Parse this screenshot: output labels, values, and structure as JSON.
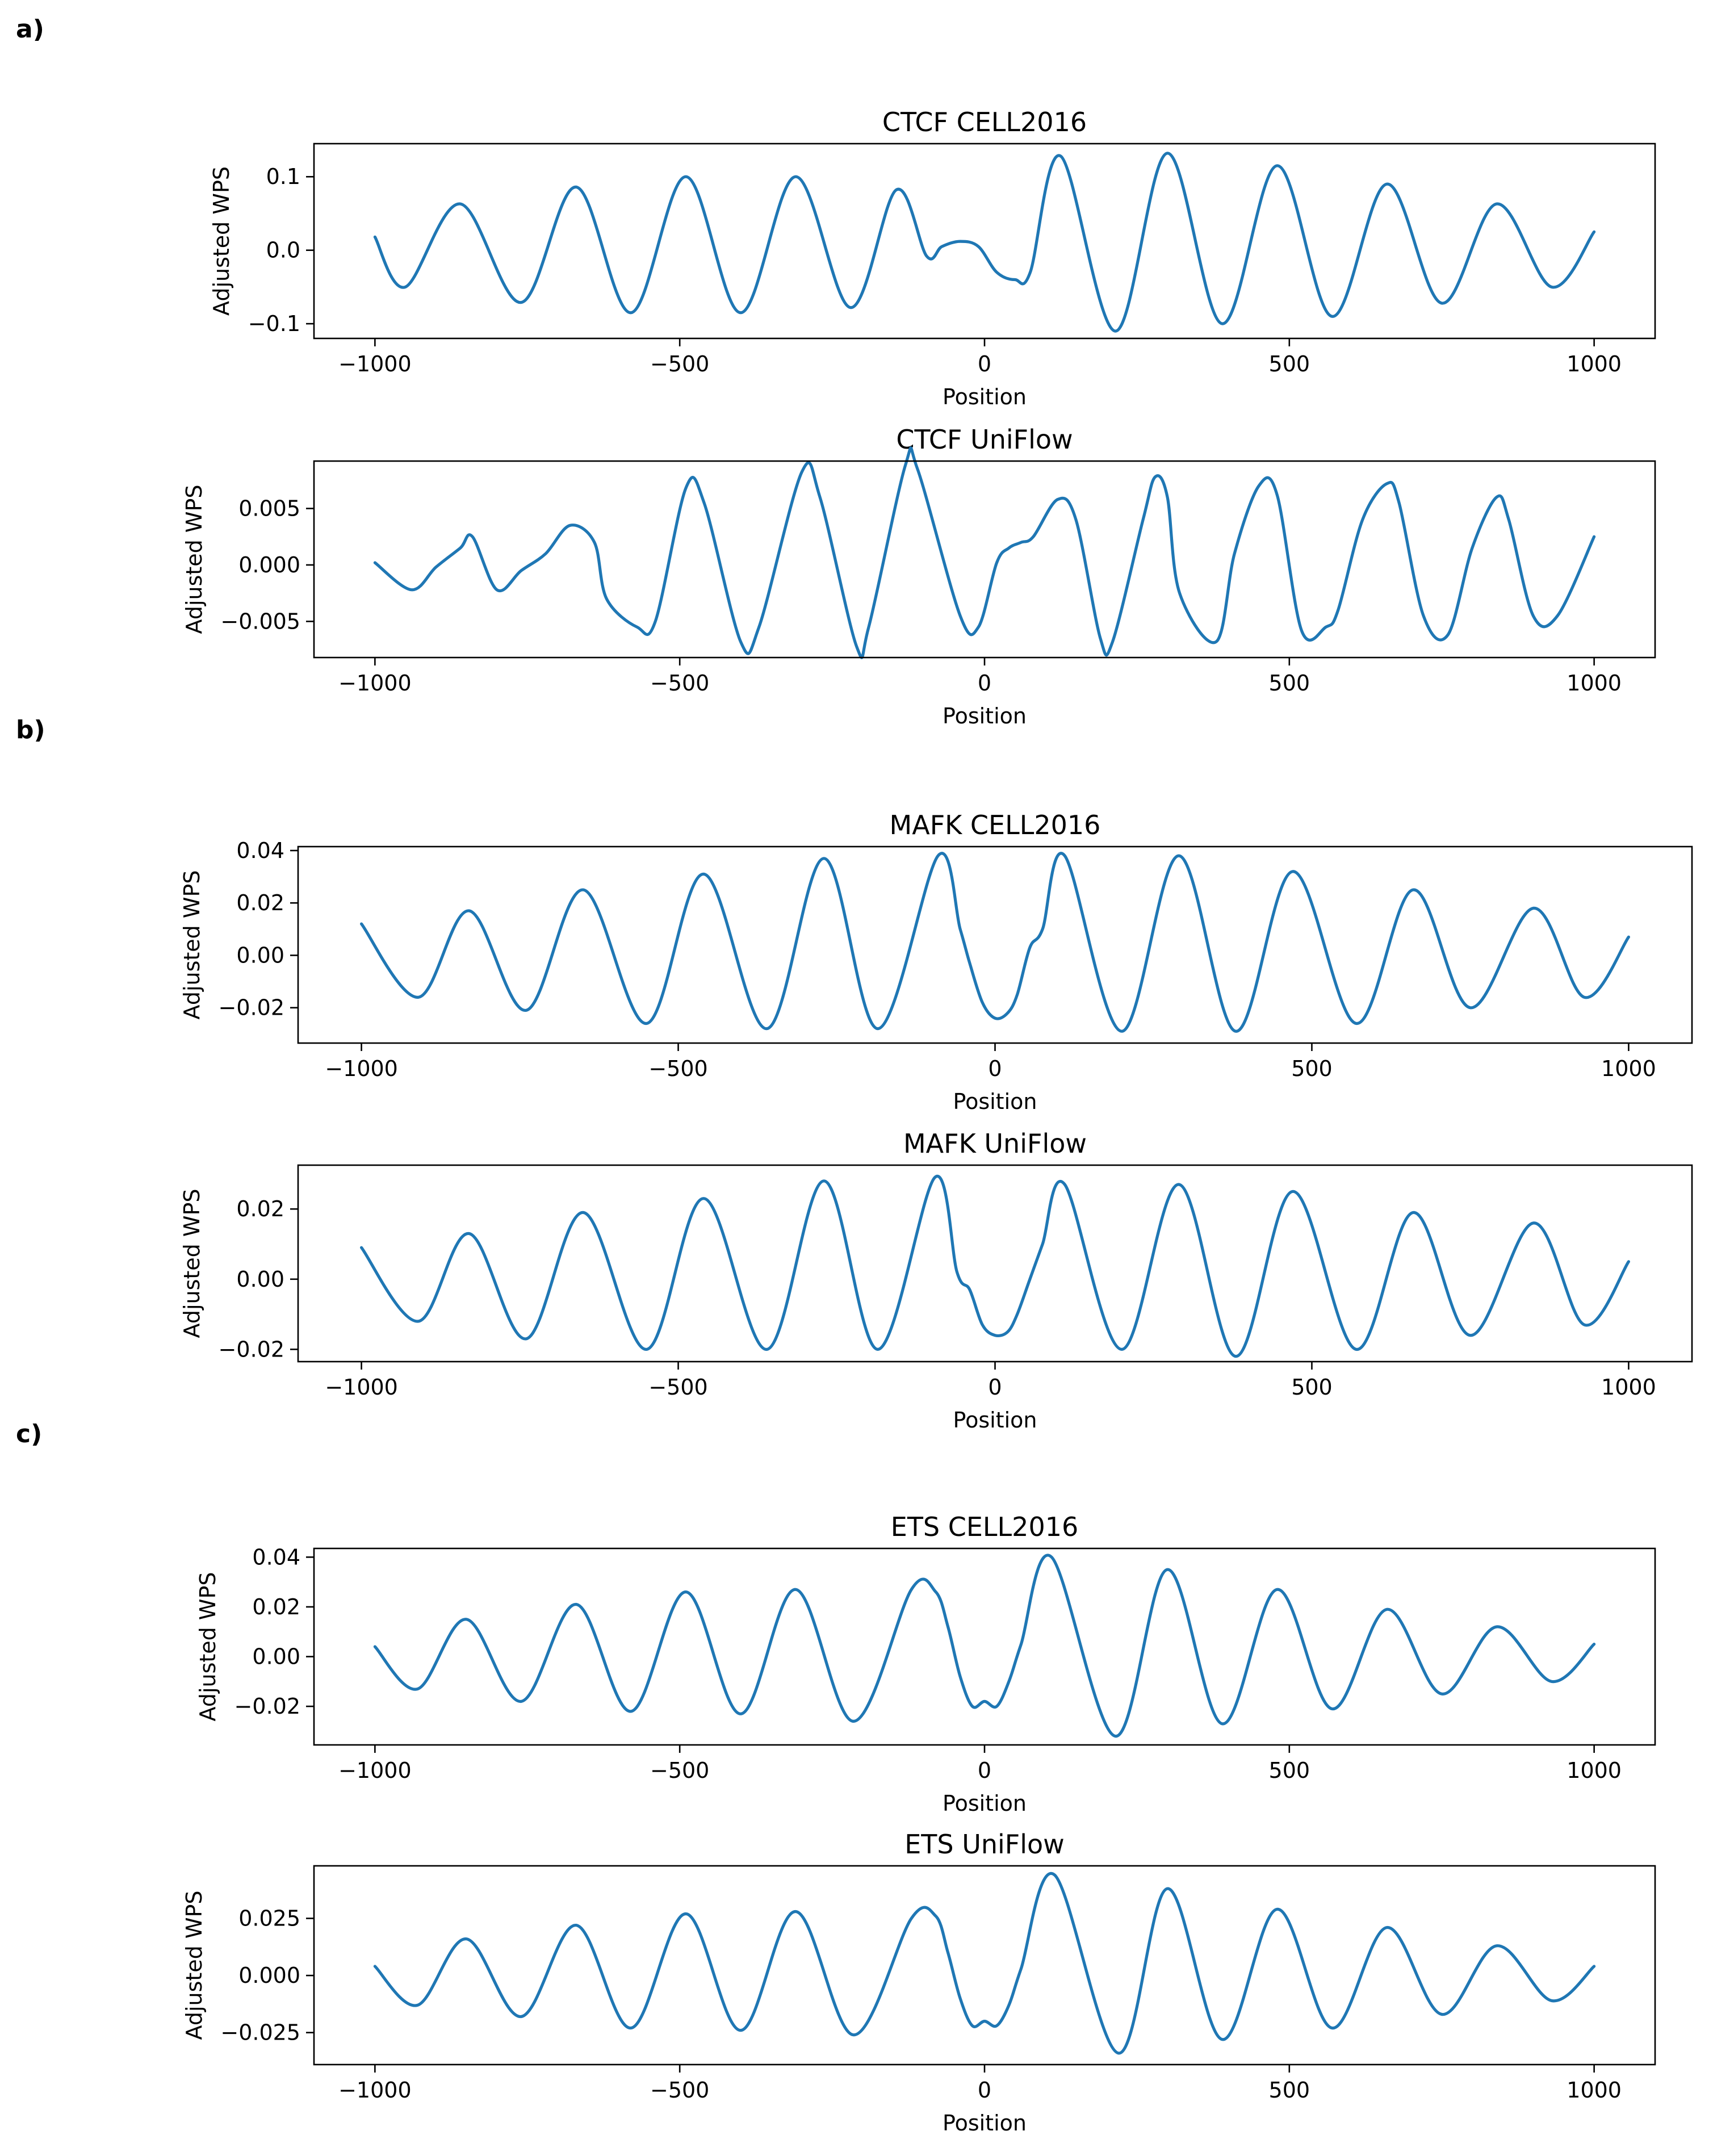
{
  "panel_labels": [
    "a)",
    "b)",
    "c)"
  ],
  "chart_data": [
    {
      "type": "line",
      "title": "CTCF CELL2016",
      "xlabel": "Position",
      "ylabel": "Adjusted WPS",
      "xlim": [
        -1100,
        1100
      ],
      "ylim": [
        -0.12,
        0.145
      ],
      "xticks": [
        -1000,
        -500,
        0,
        500,
        1000
      ],
      "xtick_labels": [
        "−1000",
        "−500",
        "0",
        "500",
        "1000"
      ],
      "yticks": [
        0.1,
        0.0,
        -0.1
      ],
      "ytick_labels": [
        "0.1",
        "0.0",
        "−0.1"
      ],
      "series": [
        {
          "color": "#1f77b4",
          "x": [
            -1000,
            -950,
            -860,
            -760,
            -670,
            -580,
            -490,
            -400,
            -310,
            -220,
            -145,
            -95,
            -70,
            -40,
            -10,
            20,
            50,
            75,
            125,
            215,
            300,
            390,
            480,
            570,
            660,
            750,
            840,
            930,
            1000
          ],
          "y": [
            0.018,
            -0.05,
            0.063,
            -0.071,
            0.086,
            -0.085,
            0.1,
            -0.085,
            0.1,
            -0.078,
            0.082,
            -0.008,
            0.005,
            0.012,
            0.005,
            -0.03,
            -0.04,
            -0.03,
            0.128,
            -0.11,
            0.132,
            -0.1,
            0.115,
            -0.09,
            0.09,
            -0.072,
            0.063,
            -0.05,
            0.025
          ]
        }
      ]
    },
    {
      "type": "line",
      "title": "CTCF UniFlow",
      "xlabel": "Position",
      "ylabel": "Adjusted WPS",
      "xlim": [
        -1100,
        1100
      ],
      "ylim": [
        -0.0082,
        0.0092
      ],
      "xticks": [
        -1000,
        -500,
        0,
        500,
        1000
      ],
      "xtick_labels": [
        "−1000",
        "−500",
        "0",
        "500",
        "1000"
      ],
      "yticks": [
        0.005,
        0.0,
        -0.005
      ],
      "ytick_labels": [
        "0.005",
        "0.000",
        "−0.005"
      ],
      "series": [
        {
          "color": "#1f77b4",
          "x": [
            -1000,
            -940,
            -900,
            -860,
            -840,
            -800,
            -760,
            -720,
            -680,
            -640,
            -620,
            -570,
            -540,
            -490,
            -460,
            -400,
            -370,
            -300,
            -270,
            -210,
            -190,
            -130,
            -110,
            -40,
            -10,
            20,
            40,
            60,
            80,
            120,
            150,
            190,
            210,
            260,
            280,
            300,
            320,
            380,
            410,
            450,
            480,
            520,
            560,
            580,
            620,
            660,
            680,
            720,
            760,
            800,
            840,
            860,
            900,
            940,
            1000
          ],
          "y": [
            0.0002,
            -0.0022,
            -0.0002,
            0.0015,
            0.0025,
            -0.0022,
            -0.0005,
            0.001,
            0.0035,
            0.002,
            -0.003,
            -0.0055,
            -0.005,
            0.0068,
            0.0055,
            -0.0068,
            -0.0055,
            0.0082,
            0.006,
            -0.0072,
            -0.0055,
            0.0088,
            0.0085,
            -0.0045,
            -0.0055,
            0.0002,
            0.0015,
            0.002,
            0.0025,
            0.0058,
            0.004,
            -0.0065,
            -0.0068,
            0.004,
            0.0078,
            0.006,
            -0.0025,
            -0.0068,
            0.001,
            0.007,
            0.0062,
            -0.0058,
            -0.0055,
            -0.004,
            0.004,
            0.0072,
            0.0055,
            -0.0045,
            -0.0062,
            0.0015,
            0.006,
            0.004,
            -0.0045,
            -0.0045,
            0.0025
          ]
        }
      ]
    },
    {
      "type": "line",
      "title": "MAFK CELL2016",
      "xlabel": "Position",
      "ylabel": "Adjusted WPS",
      "xlim": [
        -1100,
        1100
      ],
      "ylim": [
        -0.0335,
        0.0415
      ],
      "xticks": [
        -1000,
        -500,
        0,
        500,
        1000
      ],
      "xtick_labels": [
        "−1000",
        "−500",
        "0",
        "500",
        "1000"
      ],
      "yticks": [
        0.04,
        0.02,
        0.0,
        -0.02
      ],
      "ytick_labels": [
        "0.04",
        "0.02",
        "0.00",
        "−0.02"
      ],
      "series": [
        {
          "color": "#1f77b4",
          "x": [
            -1000,
            -910,
            -830,
            -740,
            -650,
            -550,
            -460,
            -360,
            -270,
            -185,
            -90,
            -55,
            -40,
            -20,
            0,
            20,
            35,
            55,
            75,
            110,
            200,
            290,
            380,
            470,
            570,
            660,
            750,
            850,
            930,
            1000
          ],
          "y": [
            0.012,
            -0.016,
            0.017,
            -0.021,
            0.025,
            -0.026,
            0.031,
            -0.028,
            0.037,
            -0.028,
            0.038,
            0.01,
            -0.003,
            -0.018,
            -0.024,
            -0.022,
            -0.015,
            0.003,
            0.01,
            0.038,
            -0.029,
            0.038,
            -0.029,
            0.032,
            -0.026,
            0.025,
            -0.02,
            0.018,
            -0.016,
            0.007
          ]
        }
      ]
    },
    {
      "type": "line",
      "title": "MAFK UniFlow",
      "xlabel": "Position",
      "ylabel": "Adjusted WPS",
      "xlim": [
        -1100,
        1100
      ],
      "ylim": [
        -0.0235,
        0.0325
      ],
      "xticks": [
        -1000,
        -500,
        0,
        500,
        1000
      ],
      "xtick_labels": [
        "−1000",
        "−500",
        "0",
        "500",
        "1000"
      ],
      "yticks": [
        0.02,
        0.0,
        -0.02
      ],
      "ytick_labels": [
        "0.02",
        "0.00",
        "−0.02"
      ],
      "series": [
        {
          "color": "#1f77b4",
          "x": [
            -1000,
            -910,
            -830,
            -740,
            -650,
            -550,
            -460,
            -360,
            -270,
            -185,
            -95,
            -60,
            -40,
            -20,
            0,
            20,
            35,
            55,
            75,
            110,
            200,
            290,
            380,
            470,
            570,
            660,
            750,
            850,
            930,
            1000
          ],
          "y": [
            0.009,
            -0.012,
            0.013,
            -0.017,
            0.019,
            -0.02,
            0.023,
            -0.02,
            0.028,
            -0.02,
            0.029,
            0.002,
            -0.003,
            -0.013,
            -0.016,
            -0.015,
            -0.01,
            0.0,
            0.01,
            0.027,
            -0.02,
            0.027,
            -0.022,
            0.025,
            -0.02,
            0.019,
            -0.016,
            0.016,
            -0.013,
            0.005
          ]
        }
      ]
    },
    {
      "type": "line",
      "title": "ETS CELL2016",
      "xlabel": "Position",
      "ylabel": "Adjusted WPS",
      "xlim": [
        -1100,
        1100
      ],
      "ylim": [
        -0.0355,
        0.0435
      ],
      "xticks": [
        -1000,
        -500,
        0,
        500,
        1000
      ],
      "xtick_labels": [
        "−1000",
        "−500",
        "0",
        "500",
        "1000"
      ],
      "yticks": [
        0.04,
        0.02,
        0.0,
        -0.02
      ],
      "ytick_labels": [
        "0.04",
        "0.02",
        "0.00",
        "−0.02"
      ],
      "series": [
        {
          "color": "#1f77b4",
          "x": [
            -1000,
            -930,
            -850,
            -760,
            -670,
            -580,
            -490,
            -400,
            -310,
            -215,
            -120,
            -80,
            -60,
            -40,
            -20,
            0,
            20,
            40,
            60,
            110,
            215,
            300,
            390,
            480,
            570,
            660,
            750,
            840,
            930,
            1000
          ],
          "y": [
            0.004,
            -0.013,
            0.015,
            -0.018,
            0.021,
            -0.022,
            0.026,
            -0.023,
            0.027,
            -0.026,
            0.027,
            0.026,
            0.012,
            -0.008,
            -0.02,
            -0.018,
            -0.02,
            -0.01,
            0.005,
            0.04,
            -0.032,
            0.035,
            -0.027,
            0.027,
            -0.021,
            0.019,
            -0.015,
            0.012,
            -0.01,
            0.005
          ]
        }
      ]
    },
    {
      "type": "line",
      "title": "ETS UniFlow",
      "xlabel": "Position",
      "ylabel": "Adjusted WPS",
      "xlim": [
        -1100,
        1100
      ],
      "ylim": [
        -0.039,
        0.048
      ],
      "xticks": [
        -1000,
        -500,
        0,
        500,
        1000
      ],
      "xtick_labels": [
        "−1000",
        "−500",
        "0",
        "500",
        "1000"
      ],
      "yticks": [
        0.025,
        0.0,
        -0.025
      ],
      "ytick_labels": [
        "0.025",
        "0.000",
        "−0.025"
      ],
      "series": [
        {
          "color": "#1f77b4",
          "x": [
            -1000,
            -930,
            -850,
            -760,
            -670,
            -580,
            -490,
            -400,
            -310,
            -215,
            -120,
            -80,
            -60,
            -40,
            -20,
            0,
            20,
            40,
            60,
            115,
            220,
            300,
            390,
            480,
            570,
            660,
            750,
            840,
            930,
            1000
          ],
          "y": [
            0.004,
            -0.013,
            0.016,
            -0.018,
            0.022,
            -0.023,
            0.027,
            -0.024,
            0.028,
            -0.026,
            0.025,
            0.026,
            0.01,
            -0.01,
            -0.022,
            -0.02,
            -0.022,
            -0.013,
            0.003,
            0.044,
            -0.034,
            0.038,
            -0.028,
            0.029,
            -0.023,
            0.021,
            -0.017,
            0.013,
            -0.011,
            0.004
          ]
        }
      ]
    }
  ]
}
